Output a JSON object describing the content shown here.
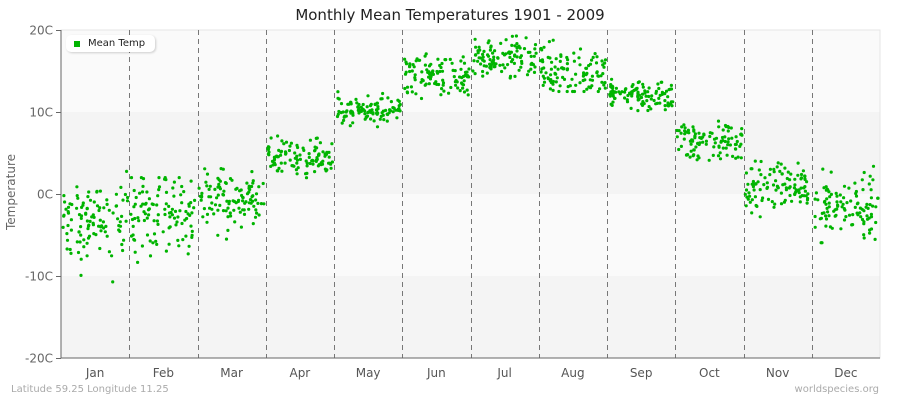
{
  "title": "Monthly Mean Temperatures 1901 - 2009",
  "y_axis_label": "Temperature",
  "legend": {
    "label": "Mean Temp",
    "color": "#00b400"
  },
  "footer": {
    "location": "Latitude 59.25 Longitude 11.25",
    "source": "worldspecies.org"
  },
  "chart_data": {
    "type": "scatter",
    "title": "Monthly Mean Temperatures 1901 - 2009",
    "xlabel": "",
    "ylabel": "Temperature",
    "ylim": [
      -20,
      20
    ],
    "y_ticks": [
      "20C",
      "10C",
      "0C",
      "-10C",
      "-20C"
    ],
    "y_tick_values": [
      20,
      10,
      0,
      -10,
      -20
    ],
    "categories": [
      "Jan",
      "Feb",
      "Mar",
      "Apr",
      "May",
      "Jun",
      "Jul",
      "Aug",
      "Sep",
      "Oct",
      "Nov",
      "Dec"
    ],
    "grid": "alternating horizontal bands, dashed vertical month separators",
    "legend_position": "top-left inside plot",
    "series": [
      {
        "name": "Mean Temp",
        "color": "#00b400",
        "points_per_month": 109,
        "years": [
          1901,
          2009
        ],
        "monthly_summary": [
          {
            "month": "Jan",
            "mean": -3.5,
            "min": -12.0,
            "max": 3.0
          },
          {
            "month": "Feb",
            "mean": -2.5,
            "min": -12.3,
            "max": 2.0
          },
          {
            "month": "Mar",
            "mean": -0.5,
            "min": -5.5,
            "max": 4.0
          },
          {
            "month": "Apr",
            "mean": 4.5,
            "min": 1.5,
            "max": 7.5
          },
          {
            "month": "May",
            "mean": 10.0,
            "min": 7.5,
            "max": 12.5
          },
          {
            "month": "Jun",
            "mean": 14.5,
            "min": 11.0,
            "max": 18.5
          },
          {
            "month": "Jul",
            "mean": 16.5,
            "min": 13.5,
            "max": 20.0
          },
          {
            "month": "Aug",
            "mean": 15.0,
            "min": 12.5,
            "max": 19.5
          },
          {
            "month": "Sep",
            "mean": 12.0,
            "min": 9.5,
            "max": 14.5
          },
          {
            "month": "Oct",
            "mean": 6.5,
            "min": 3.0,
            "max": 10.0
          },
          {
            "month": "Nov",
            "mean": 1.0,
            "min": -3.0,
            "max": 4.5
          },
          {
            "month": "Dec",
            "mean": -1.5,
            "min": -7.5,
            "max": 3.5
          }
        ]
      }
    ]
  }
}
